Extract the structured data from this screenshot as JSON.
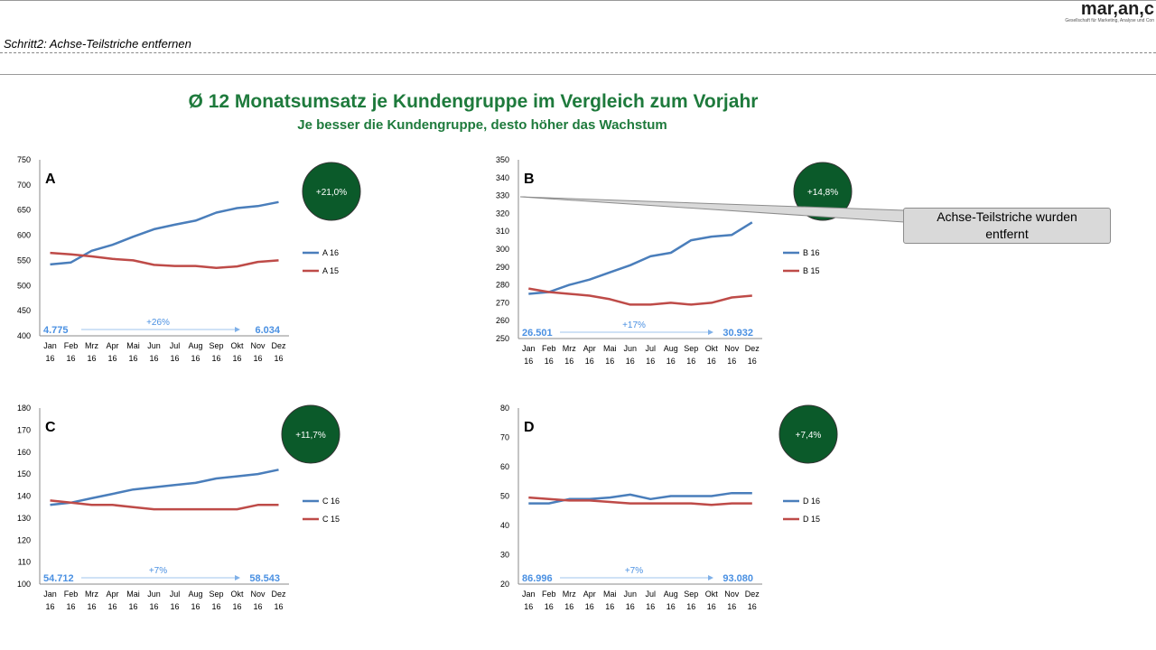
{
  "header": {
    "logo_text": "mar,an,c",
    "logo_sub": "Gesellschaft für Marketing, Analyse und Con",
    "step": "Schritt2: Achse-Teilstriche entfernen"
  },
  "title": "Ø 12 Monatsumsatz je Kundengruppe im Vergleich zum Vorjahr",
  "subtitle": "Je besser die Kundengruppe, desto höher das Wachstum",
  "callout": {
    "line1": "Achse-Teilstriche wurden",
    "line2": "entfernt"
  },
  "colors": {
    "series_16": "#4a7ebb",
    "series_15": "#be4b48",
    "bubble": "#0b5a2a",
    "annotation": "#4a90e2"
  },
  "chart_data": [
    {
      "type": "line",
      "group_label": "A",
      "categories": [
        "Jan 16",
        "Feb 16",
        "Mrz 16",
        "Apr 16",
        "Mai 16",
        "Jun 16",
        "Jul 16",
        "Aug 16",
        "Sep 16",
        "Okt 16",
        "Nov 16",
        "Dez 16"
      ],
      "ylim": [
        400,
        750
      ],
      "yticks": [
        400,
        450,
        500,
        550,
        600,
        650,
        700,
        750
      ],
      "series": [
        {
          "name": "A 16",
          "values": [
            542,
            546,
            569,
            581,
            597,
            612,
            621,
            629,
            645,
            654,
            658,
            666
          ]
        },
        {
          "name": "A 15",
          "values": [
            565,
            562,
            558,
            553,
            550,
            541,
            539,
            539,
            535,
            538,
            547,
            550
          ]
        }
      ],
      "growth": "+21,0%",
      "annotation": {
        "start": "4.775",
        "pct": "+26%",
        "end": "6.034"
      }
    },
    {
      "type": "line",
      "group_label": "B",
      "categories": [
        "Jan 16",
        "Feb 16",
        "Mrz 16",
        "Apr 16",
        "Mai 16",
        "Jun 16",
        "Jul 16",
        "Aug 16",
        "Sep 16",
        "Okt 16",
        "Nov 16",
        "Dez 16"
      ],
      "ylim": [
        250,
        350
      ],
      "yticks": [
        250,
        260,
        270,
        280,
        290,
        300,
        310,
        320,
        330,
        340,
        350
      ],
      "series": [
        {
          "name": "B 16",
          "values": [
            275,
            276,
            280,
            283,
            287,
            291,
            296,
            298,
            305,
            307,
            308,
            315
          ]
        },
        {
          "name": "B 15",
          "values": [
            278,
            276,
            275,
            274,
            272,
            269,
            269,
            270,
            269,
            270,
            273,
            274
          ]
        }
      ],
      "growth": "+14,8%",
      "annotation": {
        "start": "26.501",
        "pct": "+17%",
        "end": "30.932"
      }
    },
    {
      "type": "line",
      "group_label": "C",
      "categories": [
        "Jan 16",
        "Feb 16",
        "Mrz 16",
        "Apr 16",
        "Mai 16",
        "Jun 16",
        "Jul 16",
        "Aug 16",
        "Sep 16",
        "Okt 16",
        "Nov 16",
        "Dez 16"
      ],
      "ylim": [
        100,
        180
      ],
      "yticks": [
        100,
        110,
        120,
        130,
        140,
        150,
        160,
        170,
        180
      ],
      "series": [
        {
          "name": "C 16",
          "values": [
            136,
            137,
            139,
            141,
            143,
            144,
            145,
            146,
            148,
            149,
            150,
            152
          ]
        },
        {
          "name": "C 15",
          "values": [
            138,
            137,
            136,
            136,
            135,
            134,
            134,
            134,
            134,
            134,
            136,
            136
          ]
        }
      ],
      "growth": "+11,7%",
      "annotation": {
        "start": "54.712",
        "pct": "+7%",
        "end": "58.543"
      }
    },
    {
      "type": "line",
      "group_label": "D",
      "categories": [
        "Jan 16",
        "Feb 16",
        "Mrz 16",
        "Apr 16",
        "Mai 16",
        "Jun 16",
        "Jul 16",
        "Aug 16",
        "Sep 16",
        "Okt 16",
        "Nov 16",
        "Dez 16"
      ],
      "ylim": [
        20,
        80
      ],
      "yticks": [
        20,
        30,
        40,
        50,
        60,
        70,
        80
      ],
      "series": [
        {
          "name": "D 16",
          "values": [
            47.5,
            47.5,
            49,
            49,
            49.5,
            50.5,
            49,
            50,
            50,
            50,
            51,
            51
          ]
        },
        {
          "name": "D 15",
          "values": [
            49.5,
            49,
            48.5,
            48.5,
            48,
            47.5,
            47.5,
            47.5,
            47.5,
            47,
            47.5,
            47.5
          ]
        }
      ],
      "growth": "+7,4%",
      "annotation": {
        "start": "86.996",
        "pct": "+7%",
        "end": "93.080"
      }
    }
  ]
}
